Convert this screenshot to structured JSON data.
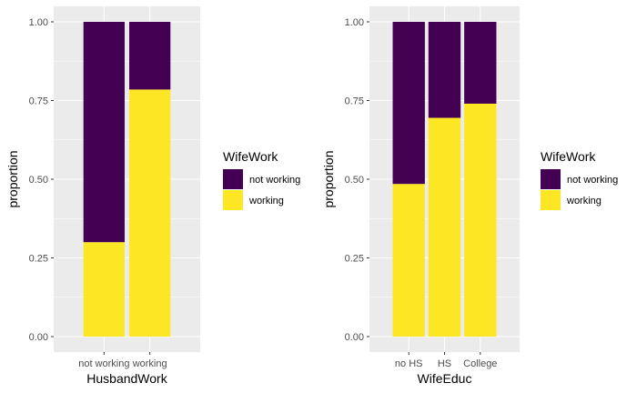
{
  "chart_data": [
    {
      "type": "bar",
      "stacked": true,
      "position": "fill",
      "categories": [
        "not working",
        "working"
      ],
      "xlabel": "HusbandWork",
      "ylabel": "proportion",
      "ylim": [
        0,
        1
      ],
      "y_ticks": [
        "0.00",
        "0.25",
        "0.50",
        "0.75",
        "1.00"
      ],
      "grid": true,
      "legend_position": "right",
      "legend_title": "WifeWork",
      "series": [
        {
          "name": "not working",
          "color": "#440154",
          "values": [
            0.7,
            0.215
          ]
        },
        {
          "name": "working",
          "color": "#FDE725",
          "values": [
            0.3,
            0.785
          ]
        }
      ]
    },
    {
      "type": "bar",
      "stacked": true,
      "position": "fill",
      "categories": [
        "no HS",
        "HS",
        "College"
      ],
      "xlabel": "WifeEduc",
      "ylabel": "proportion",
      "ylim": [
        0,
        1
      ],
      "y_ticks": [
        "0.00",
        "0.25",
        "0.50",
        "0.75",
        "1.00"
      ],
      "grid": true,
      "legend_position": "right",
      "legend_title": "WifeWork",
      "series": [
        {
          "name": "not working",
          "color": "#440154",
          "values": [
            0.515,
            0.305,
            0.26
          ]
        },
        {
          "name": "working",
          "color": "#FDE725",
          "values": [
            0.485,
            0.695,
            0.74
          ]
        }
      ]
    }
  ]
}
